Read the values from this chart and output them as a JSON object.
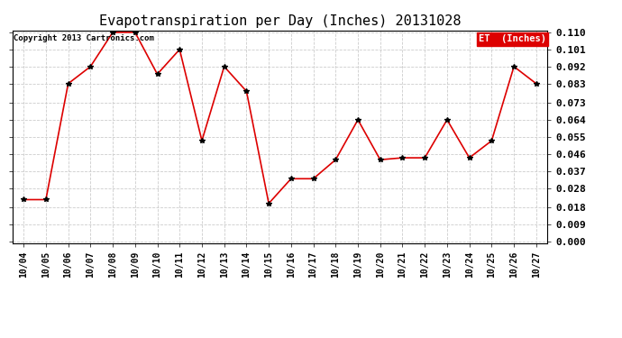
{
  "title": "Evapotranspiration per Day (Inches) 20131028",
  "copyright": "Copyright 2013 Cartronics.com",
  "legend_label": "ET  (Inches)",
  "legend_bg": "#dd0000",
  "legend_text_color": "#ffffff",
  "line_color": "#dd0000",
  "marker_color": "#000000",
  "background_color": "#ffffff",
  "grid_color": "#cccccc",
  "x_labels": [
    "10/04",
    "10/05",
    "10/06",
    "10/07",
    "10/08",
    "10/09",
    "10/10",
    "10/11",
    "10/12",
    "10/13",
    "10/14",
    "10/15",
    "10/16",
    "10/17",
    "10/18",
    "10/19",
    "10/20",
    "10/21",
    "10/22",
    "10/23",
    "10/24",
    "10/25",
    "10/26",
    "10/27"
  ],
  "y_values": [
    0.022,
    0.022,
    0.083,
    0.092,
    0.11,
    0.11,
    0.088,
    0.101,
    0.053,
    0.092,
    0.079,
    0.02,
    0.033,
    0.033,
    0.043,
    0.064,
    0.043,
    0.044,
    0.044,
    0.064,
    0.044,
    0.053,
    0.092,
    0.083
  ],
  "ylim": [
    0.0,
    0.11
  ],
  "yticks": [
    0.0,
    0.009,
    0.018,
    0.028,
    0.037,
    0.046,
    0.055,
    0.064,
    0.073,
    0.083,
    0.092,
    0.101,
    0.11
  ]
}
